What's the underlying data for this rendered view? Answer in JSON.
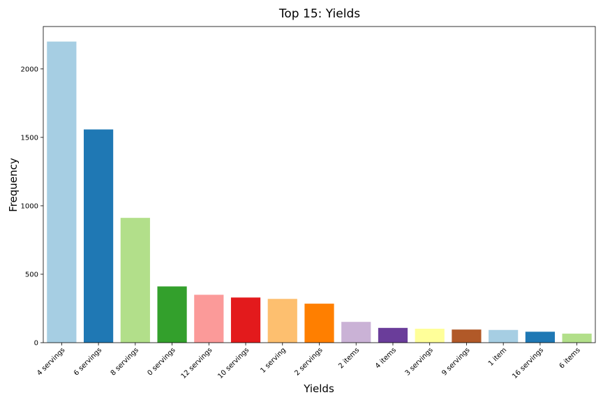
{
  "chart_data": {
    "type": "bar",
    "title": "Top 15: Yields",
    "xlabel": "Yields",
    "ylabel": "Frequency",
    "ylim": [
      0,
      2310
    ],
    "yticks": [
      0,
      500,
      1000,
      1500,
      2000
    ],
    "grid": false,
    "categories": [
      "4 servings",
      "6 servings",
      "8 servings",
      "0 servings",
      "12 servings",
      "10 servings",
      "1 serving",
      "2 servings",
      "2 items",
      "4 items",
      "3 servings",
      "9 servings",
      "1 item",
      "16 servings",
      "6 items"
    ],
    "values": [
      2200,
      1558,
      912,
      411,
      350,
      330,
      320,
      285,
      152,
      108,
      102,
      96,
      93,
      80,
      66
    ],
    "colors": [
      "#a6cee3",
      "#1f78b4",
      "#b2df8a",
      "#33a02c",
      "#fb9a99",
      "#e31a1c",
      "#fdbf6f",
      "#ff7f00",
      "#cab2d6",
      "#6a3d9a",
      "#ffff99",
      "#b15928",
      "#a6cee3",
      "#1f78b4",
      "#b2df8a"
    ]
  }
}
